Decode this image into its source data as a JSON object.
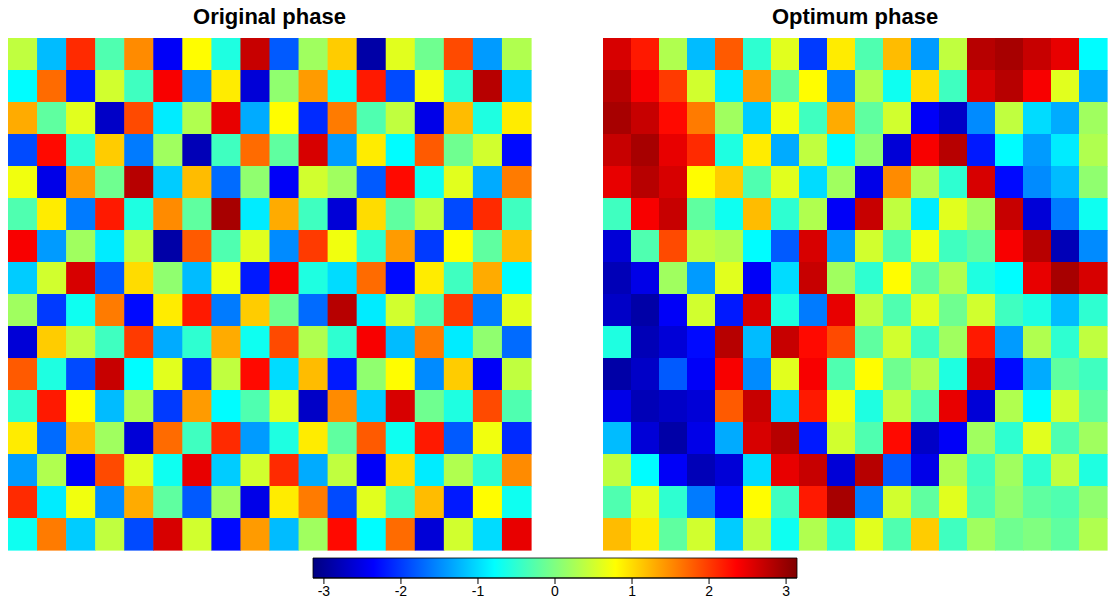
{
  "chart_data": [
    {
      "type": "heatmap",
      "title": "Original phase",
      "tick_labels": false,
      "cells": [
        [
          0.4,
          -1.2,
          2.1,
          -0.3,
          1.5,
          -2.4,
          0.8,
          -0.6,
          2.7,
          -1.8,
          0.2,
          1.1,
          -2.9,
          0.6,
          -0.1,
          1.9,
          -1.4,
          0.3
        ],
        [
          -0.8,
          1.7,
          -2.2,
          0.5,
          -0.4,
          2.4,
          -1.5,
          0.9,
          -2.6,
          0.1,
          1.4,
          -0.7,
          2.2,
          -1.9,
          0.7,
          -0.5,
          2.8,
          -1.1
        ],
        [
          1.3,
          -0.2,
          0.6,
          -2.7,
          1.9,
          -0.9,
          0.3,
          2.5,
          -1.3,
          0.8,
          -2.1,
          1.6,
          -0.3,
          0.4,
          -2.5,
          1.2,
          -0.6,
          0.9
        ],
        [
          -1.9,
          2.3,
          -0.5,
          1.1,
          -1.6,
          0.2,
          -2.8,
          -0.4,
          1.7,
          -0.2,
          2.6,
          -1.4,
          0.9,
          -0.8,
          1.8,
          -0.1,
          0.5,
          -2.3
        ],
        [
          0.7,
          -2.5,
          1.4,
          -0.1,
          2.8,
          -1.1,
          1.2,
          -1.7,
          0.1,
          -2.4,
          0.5,
          0.2,
          -1.8,
          2.3,
          -0.7,
          0.6,
          -1.3,
          1.6
        ],
        [
          -0.3,
          0.9,
          -1.6,
          2.2,
          -0.6,
          1.5,
          -0.2,
          2.9,
          -0.9,
          1.3,
          -0.4,
          -2.6,
          1.0,
          -0.2,
          0.4,
          -1.9,
          2.1,
          -0.4
        ],
        [
          2.4,
          -1.4,
          0.2,
          -0.9,
          0.4,
          -2.9,
          1.8,
          -0.3,
          0.6,
          -1.5,
          2.0,
          0.7,
          -0.5,
          1.4,
          -2.0,
          0.8,
          -0.2,
          1.2
        ],
        [
          -1.1,
          0.5,
          2.6,
          -1.8,
          1.0,
          0.1,
          -1.2,
          0.7,
          -2.2,
          2.4,
          -0.6,
          -1.0,
          1.7,
          -2.3,
          0.9,
          -0.4,
          1.3,
          -0.8
        ],
        [
          0.2,
          -2.0,
          -0.7,
          1.6,
          -2.3,
          0.9,
          2.2,
          -1.6,
          1.1,
          -0.1,
          -1.7,
          2.8,
          -0.9,
          0.5,
          -0.3,
          2.0,
          -1.6,
          0.6
        ],
        [
          -2.6,
          1.1,
          0.4,
          -0.4,
          2.0,
          -1.3,
          -0.5,
          1.3,
          -0.7,
          1.9,
          0.3,
          -0.5,
          2.4,
          -1.2,
          1.6,
          -0.9,
          0.1,
          -1.7
        ],
        [
          1.8,
          -0.6,
          -1.9,
          2.7,
          -0.8,
          0.6,
          -2.1,
          0.4,
          2.3,
          -1.0,
          1.2,
          -2.2,
          0.1,
          0.8,
          -1.5,
          1.1,
          -2.4,
          0.4
        ],
        [
          -0.5,
          2.2,
          0.8,
          -1.2,
          0.3,
          -2.0,
          1.4,
          -0.8,
          -0.3,
          0.6,
          -2.7,
          1.5,
          -1.1,
          2.6,
          -0.1,
          -0.6,
          1.9,
          -0.3
        ],
        [
          0.9,
          -1.7,
          1.2,
          0.2,
          -2.6,
          1.7,
          -0.4,
          2.1,
          -1.4,
          -0.6,
          0.9,
          -0.2,
          1.8,
          -0.7,
          2.2,
          -1.8,
          0.7,
          -2.1
        ],
        [
          -1.4,
          0.3,
          -2.4,
          1.9,
          0.6,
          -0.7,
          2.5,
          -1.1,
          0.5,
          2.1,
          -1.3,
          0.4,
          -2.4,
          1.0,
          -0.9,
          0.3,
          -0.5,
          1.5
        ],
        [
          2.1,
          -0.9,
          0.7,
          -1.5,
          1.3,
          -0.2,
          -1.8,
          0.2,
          -2.5,
          0.9,
          1.6,
          -1.9,
          0.6,
          -0.4,
          1.2,
          -2.2,
          0.8,
          -0.7
        ],
        [
          -0.7,
          1.6,
          -1.1,
          0.4,
          -1.9,
          2.6,
          0.5,
          -2.3,
          1.4,
          -1.2,
          0.2,
          2.3,
          -0.8,
          1.7,
          -2.6,
          0.5,
          -1.0,
          2.5
        ]
      ]
    },
    {
      "type": "heatmap",
      "title": "Optimum phase",
      "tick_labels": false,
      "cells": [
        [
          2.6,
          2.2,
          0.3,
          -1.2,
          1.8,
          -0.5,
          0.6,
          -2.0,
          0.9,
          -0.3,
          1.2,
          -1.4,
          0.4,
          2.8,
          2.9,
          2.7,
          2.5,
          -0.8
        ],
        [
          2.8,
          2.4,
          2.0,
          0.5,
          -0.9,
          1.4,
          -0.2,
          0.8,
          -1.6,
          0.3,
          -0.7,
          1.0,
          -0.4,
          2.6,
          2.8,
          2.4,
          0.6,
          -1.3
        ],
        [
          2.9,
          2.7,
          2.3,
          1.6,
          0.2,
          -1.1,
          0.7,
          -0.4,
          1.3,
          -0.2,
          0.5,
          -2.4,
          -2.7,
          -1.5,
          0.4,
          -1.0,
          -1.3,
          0.2
        ],
        [
          2.7,
          2.9,
          2.5,
          2.1,
          -0.6,
          0.9,
          -1.3,
          0.4,
          -0.8,
          0.1,
          -2.6,
          2.4,
          2.8,
          -2.2,
          -0.8,
          -1.4,
          -0.9,
          0.3
        ],
        [
          2.5,
          2.8,
          2.6,
          0.8,
          1.1,
          -0.3,
          0.6,
          -1.0,
          0.2,
          -2.5,
          1.5,
          0.3,
          -0.5,
          2.6,
          -2.3,
          -1.5,
          -1.2,
          0.1
        ],
        [
          -0.4,
          2.4,
          2.7,
          -0.2,
          -0.7,
          1.2,
          -0.5,
          0.3,
          -2.4,
          2.7,
          0.4,
          -0.9,
          0.6,
          0.2,
          2.7,
          -2.6,
          -1.6,
          -0.7
        ],
        [
          -2.6,
          -0.3,
          1.9,
          0.4,
          0.3,
          -0.8,
          -1.8,
          2.6,
          -1.4,
          0.5,
          -0.3,
          0.7,
          -0.4,
          -0.2,
          2.4,
          2.8,
          -2.8,
          -1.5
        ],
        [
          -2.8,
          -2.5,
          0.2,
          -1.4,
          0.6,
          -2.4,
          -1.0,
          2.7,
          0.2,
          -0.5,
          0.8,
          -0.2,
          0.3,
          -0.6,
          -0.8,
          2.5,
          2.9,
          2.6
        ],
        [
          -2.7,
          -2.9,
          -2.4,
          0.5,
          -2.2,
          2.6,
          -0.6,
          -1.6,
          2.5,
          0.4,
          -0.3,
          0.6,
          -0.1,
          0.5,
          -0.4,
          -0.6,
          -1.2,
          -0.5
        ],
        [
          -0.6,
          -2.8,
          -2.6,
          -2.3,
          2.8,
          -1.2,
          2.7,
          2.3,
          1.9,
          -0.2,
          0.5,
          -0.4,
          0.2,
          2.2,
          -1.4,
          0.3,
          -0.5,
          0.4
        ],
        [
          -2.9,
          -2.7,
          -1.8,
          -2.4,
          2.4,
          -1.5,
          0.6,
          2.4,
          -0.3,
          0.8,
          -0.1,
          0.3,
          -0.6,
          2.6,
          -2.3,
          -1.3,
          -0.2,
          -0.4
        ],
        [
          -2.5,
          -2.8,
          -2.7,
          -2.6,
          1.8,
          2.7,
          -1.1,
          2.2,
          0.7,
          -0.6,
          0.4,
          -0.3,
          2.5,
          -2.6,
          0.3,
          -0.8,
          0.5,
          -0.2
        ],
        [
          -1.2,
          -2.6,
          -2.9,
          -2.5,
          -1.3,
          2.6,
          2.8,
          -2.2,
          0.5,
          -0.3,
          2.3,
          -2.7,
          -2.4,
          0.2,
          -0.5,
          0.6,
          -0.3,
          0.2
        ],
        [
          0.4,
          -0.8,
          -2.4,
          -2.8,
          -2.6,
          -1.0,
          2.5,
          2.7,
          -2.6,
          2.8,
          -1.8,
          -2.5,
          0.3,
          -0.4,
          0.2,
          -0.5,
          0.4,
          -0.6
        ],
        [
          -0.3,
          0.6,
          -0.5,
          -1.6,
          -2.3,
          0.8,
          -0.4,
          2.2,
          2.9,
          -1.6,
          0.5,
          -0.2,
          0.6,
          -0.3,
          0.1,
          -0.2,
          -0.3,
          0.1
        ],
        [
          1.2,
          0.9,
          -0.2,
          0.5,
          -1.1,
          0.4,
          -0.7,
          0.3,
          -0.5,
          0.6,
          -0.3,
          1.1,
          -0.4,
          0.2,
          -0.1,
          0.0,
          -0.2,
          0.3
        ]
      ]
    },
    {
      "type": "colorbar",
      "xlim": [
        -3.1416,
        3.1416
      ],
      "xticks": [
        -3,
        -2,
        -1,
        0,
        1,
        2,
        3
      ]
    }
  ]
}
